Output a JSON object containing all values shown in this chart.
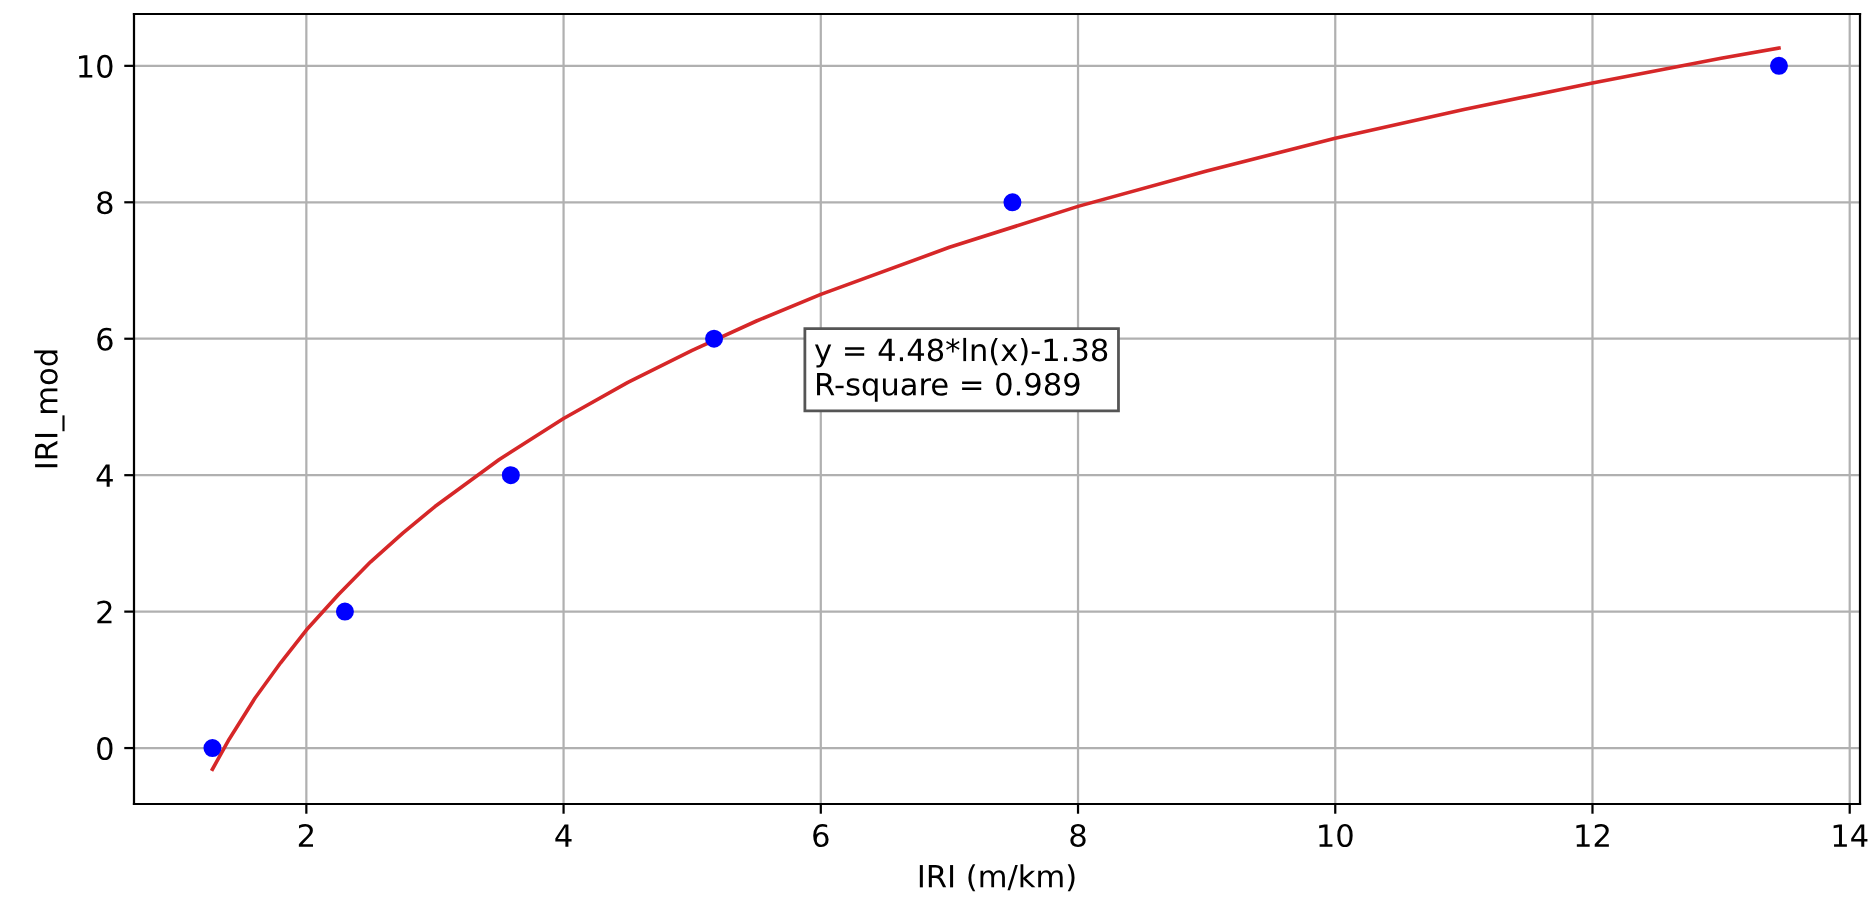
{
  "chart_data": {
    "type": "scatter",
    "xlabel": "IRI (m/km)",
    "ylabel": "IRI_mod",
    "xlim": [
      0.66,
      14.08
    ],
    "ylim": [
      -0.82,
      10.76
    ],
    "xticks": [
      2,
      4,
      6,
      8,
      10,
      12,
      14
    ],
    "yticks": [
      0,
      2,
      4,
      6,
      8,
      10
    ],
    "grid": true,
    "annotations": [
      "y = 4.48*ln(x)-1.38\nR-square = 0.989"
    ],
    "series": [
      {
        "type": "line",
        "color": "#d62728",
        "marker": "none",
        "line_style": "solid",
        "x": [
          1.27,
          1.4,
          1.6,
          1.8,
          2,
          2.25,
          2.5,
          2.75,
          3,
          3.5,
          4,
          4.5,
          5,
          5.5,
          6,
          7,
          8,
          9,
          10,
          11,
          12,
          13,
          13.45
        ],
        "values": [
          -0.31,
          0.13,
          0.73,
          1.25,
          1.73,
          2.25,
          2.73,
          3.15,
          3.54,
          4.23,
          4.83,
          5.36,
          5.83,
          6.26,
          6.65,
          7.34,
          7.94,
          8.46,
          8.94,
          9.36,
          9.75,
          10.11,
          10.26
        ]
      },
      {
        "color": "#0000ff",
        "marker": "circle",
        "x": [
          1.27,
          2.3,
          3.59,
          5.17,
          7.49,
          13.45
        ],
        "values": [
          0,
          2,
          4,
          6,
          8,
          10
        ]
      }
    ]
  }
}
